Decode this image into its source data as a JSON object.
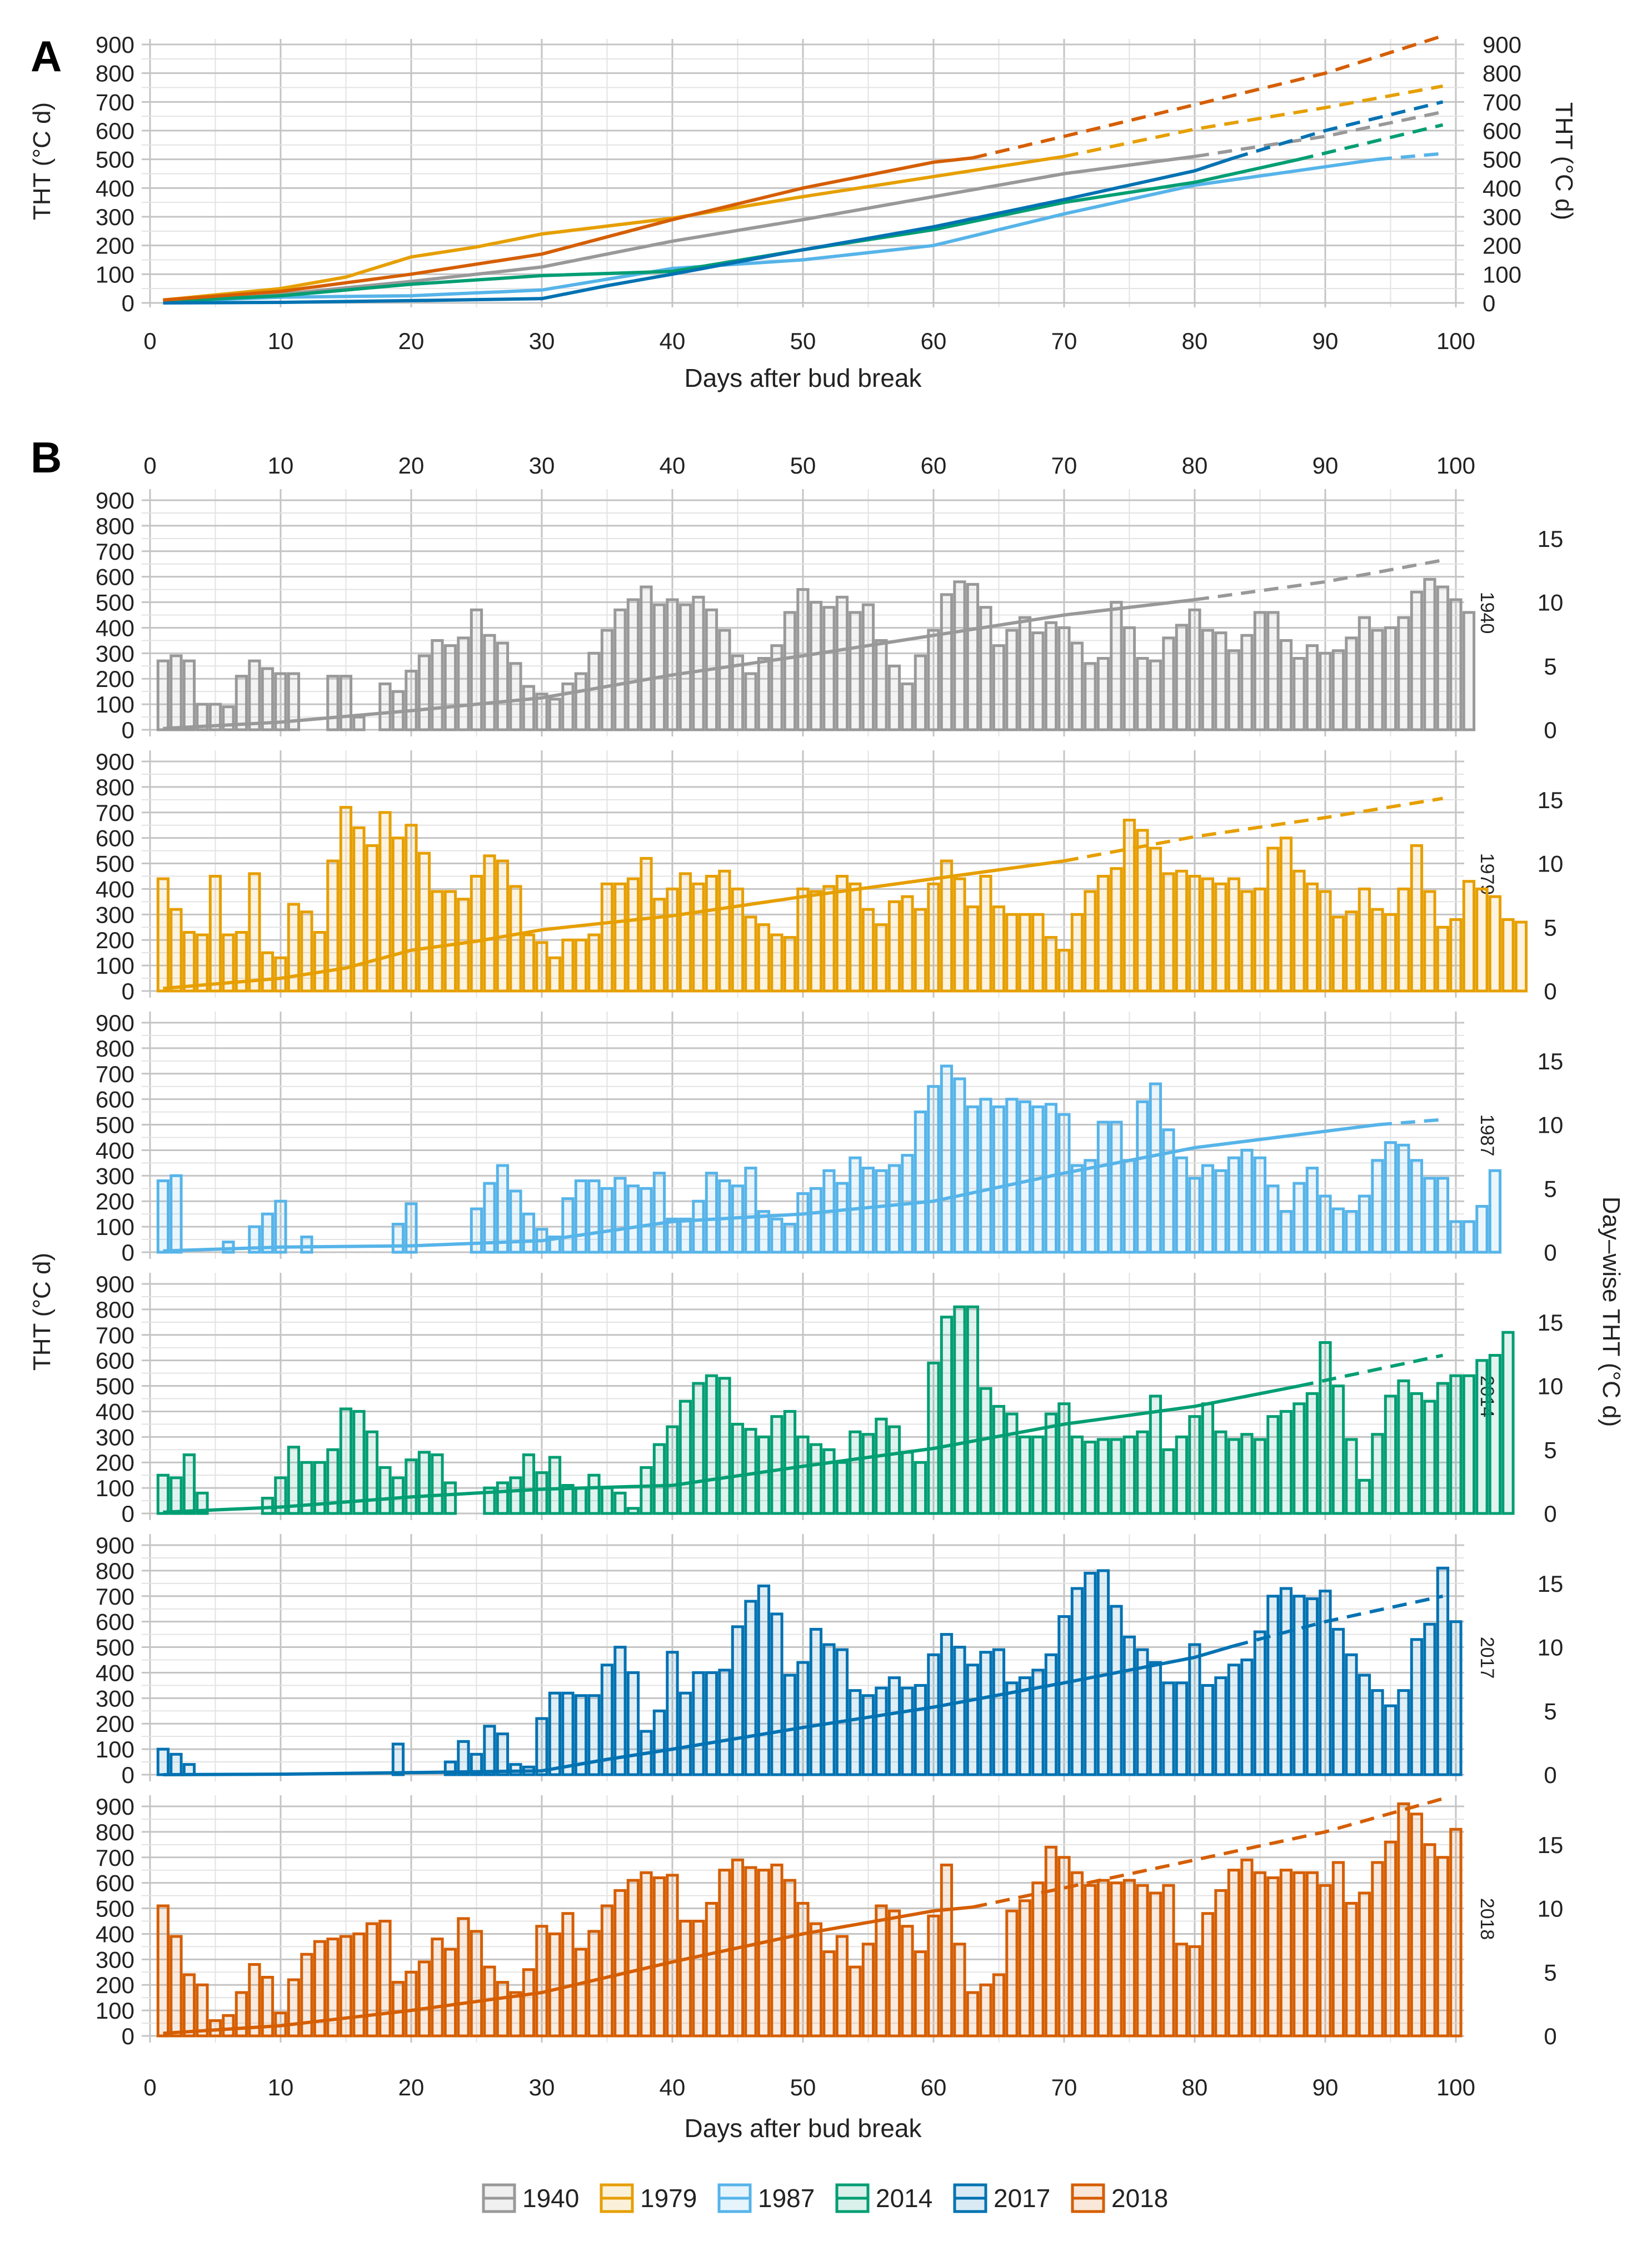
{
  "figure": {
    "panel_a_label": "A",
    "panel_b_label": "B",
    "x_label": "Days after bud break",
    "y_label": "THT (°C d)",
    "y_label_right_a": "THT (°C d)",
    "y_label_right_b": "Day–wise THT (°C d)"
  },
  "legend": [
    {
      "name": "1940",
      "color": "#999999"
    },
    {
      "name": "1979",
      "color": "#E69F00"
    },
    {
      "name": "1987",
      "color": "#56B4E9"
    },
    {
      "name": "2014",
      "color": "#009E73"
    },
    {
      "name": "2017",
      "color": "#0072B2"
    },
    {
      "name": "2018",
      "color": "#D55E00"
    }
  ],
  "chart_data": [
    {
      "type": "line",
      "panel": "A",
      "title": "",
      "xlabel": "Days after bud break",
      "ylabel": "THT (°C d)",
      "ylabel_right": "THT (°C d)",
      "xlim": [
        0,
        100
      ],
      "ylim": [
        0,
        900
      ],
      "x_ticks": [
        0,
        10,
        20,
        30,
        40,
        50,
        60,
        70,
        80,
        90,
        100
      ],
      "y_ticks": [
        0,
        100,
        200,
        300,
        400,
        500,
        600,
        700,
        800,
        900
      ],
      "grid": true,
      "note": "solid = observed cumulative THT; dashed = projected",
      "series": [
        {
          "name": "1940",
          "color": "#999999",
          "observed_end": 80,
          "x": [
            1,
            10,
            20,
            30,
            40,
            50,
            60,
            70,
            80,
            90,
            99
          ],
          "values": [
            5,
            30,
            75,
            125,
            215,
            290,
            370,
            450,
            510,
            580,
            665
          ]
        },
        {
          "name": "1979",
          "color": "#E69F00",
          "observed_end": 70,
          "x": [
            1,
            10,
            15,
            20,
            25,
            30,
            40,
            50,
            60,
            70,
            80,
            90,
            99
          ],
          "values": [
            10,
            50,
            90,
            160,
            195,
            240,
            295,
            370,
            440,
            510,
            605,
            680,
            755
          ]
        },
        {
          "name": "1987",
          "color": "#56B4E9",
          "observed_end": 94,
          "x": [
            1,
            10,
            20,
            30,
            40,
            50,
            60,
            70,
            80,
            94,
            99
          ],
          "values": [
            5,
            20,
            25,
            45,
            120,
            150,
            200,
            310,
            410,
            500,
            520
          ]
        },
        {
          "name": "2014",
          "color": "#009E73",
          "observed_end": 88,
          "x": [
            1,
            10,
            20,
            30,
            40,
            50,
            60,
            70,
            80,
            88,
            99
          ],
          "values": [
            5,
            25,
            65,
            95,
            110,
            185,
            255,
            350,
            420,
            500,
            620
          ]
        },
        {
          "name": "2017",
          "color": "#0072B2",
          "observed_end": 83,
          "x": [
            1,
            10,
            20,
            30,
            35,
            40,
            50,
            60,
            70,
            80,
            83,
            90,
            99
          ],
          "values": [
            0,
            2,
            8,
            15,
            60,
            100,
            185,
            265,
            360,
            460,
            505,
            600,
            700
          ]
        },
        {
          "name": "2018",
          "color": "#D55E00",
          "observed_end": 63,
          "x": [
            1,
            10,
            20,
            30,
            40,
            50,
            60,
            63,
            70,
            80,
            90,
            99
          ],
          "values": [
            10,
            40,
            100,
            170,
            290,
            400,
            490,
            505,
            580,
            690,
            800,
            930
          ]
        }
      ]
    },
    {
      "type": "bar",
      "panel": "B",
      "layout": "six stacked facets, one per year",
      "xlabel": "Days after bud break",
      "ylabel": "THT (°C d)",
      "ylabel_right": "Day–wise THT (°C d)",
      "xlim": [
        0,
        100
      ],
      "ylim_left": [
        0,
        900
      ],
      "ylim_right": [
        0,
        18
      ],
      "x_ticks": [
        0,
        10,
        20,
        30,
        40,
        50,
        60,
        70,
        80,
        90,
        100
      ],
      "y_ticks": [
        0,
        100,
        200,
        300,
        400,
        500,
        600,
        700,
        800,
        900
      ],
      "y_ticks_right": [
        0,
        5,
        10,
        15
      ],
      "note": "bars = day-wise THT on left-axis scale (= right value × 50); line = cumulative THT, dashed beyond observed_end",
      "facets": [
        {
          "year": "1940",
          "color": "#999999",
          "observed_end": 80,
          "bars": [
            270,
            290,
            270,
            100,
            100,
            90,
            210,
            270,
            240,
            220,
            220,
            0,
            0,
            210,
            210,
            50,
            0,
            180,
            150,
            230,
            290,
            350,
            330,
            360,
            470,
            370,
            340,
            260,
            170,
            140,
            120,
            180,
            220,
            300,
            390,
            470,
            510,
            560,
            490,
            510,
            490,
            520,
            470,
            390,
            290,
            220,
            280,
            330,
            460,
            550,
            500,
            480,
            520,
            460,
            490,
            350,
            250,
            180,
            290,
            390,
            530,
            580,
            570,
            480,
            330,
            390,
            440,
            380,
            420,
            400,
            340,
            260,
            280,
            500,
            400,
            280,
            270,
            360,
            410,
            470,
            390,
            380,
            310,
            370,
            460,
            460,
            350,
            280,
            330,
            300,
            310,
            360,
            440,
            390,
            400,
            440,
            540,
            590,
            560,
            510,
            460
          ],
          "line_x": [
            1,
            10,
            20,
            30,
            40,
            50,
            60,
            70,
            80,
            90,
            99
          ],
          "line_values": [
            5,
            30,
            75,
            125,
            215,
            290,
            370,
            450,
            510,
            580,
            665
          ]
        },
        {
          "year": "1979",
          "color": "#E69F00",
          "observed_end": 70,
          "bars": [
            440,
            320,
            230,
            220,
            450,
            220,
            230,
            460,
            150,
            130,
            340,
            310,
            230,
            510,
            720,
            640,
            570,
            700,
            600,
            650,
            540,
            390,
            390,
            360,
            450,
            530,
            510,
            410,
            220,
            190,
            130,
            200,
            200,
            220,
            420,
            420,
            440,
            520,
            360,
            400,
            460,
            420,
            450,
            470,
            400,
            290,
            260,
            220,
            210,
            400,
            390,
            410,
            450,
            420,
            320,
            260,
            350,
            370,
            320,
            420,
            510,
            440,
            330,
            450,
            330,
            300,
            300,
            300,
            210,
            160,
            300,
            390,
            450,
            480,
            670,
            630,
            560,
            460,
            470,
            450,
            440,
            420,
            440,
            390,
            400,
            560,
            600,
            470,
            420,
            390,
            290,
            310,
            400,
            320,
            300,
            400,
            570,
            390,
            250,
            280,
            430,
            400,
            370,
            280,
            270
          ],
          "line_x": [
            1,
            10,
            15,
            20,
            25,
            30,
            40,
            50,
            60,
            70,
            80,
            90,
            99
          ],
          "line_values": [
            10,
            50,
            90,
            160,
            195,
            240,
            295,
            370,
            440,
            510,
            605,
            680,
            755
          ]
        },
        {
          "year": "1987",
          "color": "#56B4E9",
          "observed_end": 94,
          "bars": [
            280,
            300,
            0,
            0,
            0,
            40,
            0,
            100,
            150,
            200,
            0,
            60,
            0,
            0,
            0,
            0,
            0,
            0,
            110,
            190,
            0,
            0,
            0,
            0,
            170,
            270,
            340,
            240,
            150,
            90,
            60,
            210,
            280,
            280,
            250,
            290,
            260,
            250,
            310,
            130,
            130,
            200,
            310,
            280,
            260,
            330,
            160,
            130,
            110,
            230,
            250,
            320,
            270,
            370,
            330,
            320,
            340,
            380,
            550,
            650,
            730,
            680,
            570,
            600,
            570,
            600,
            590,
            570,
            580,
            540,
            340,
            360,
            510,
            510,
            360,
            590,
            660,
            480,
            370,
            290,
            340,
            320,
            370,
            400,
            370,
            260,
            160,
            270,
            330,
            220,
            170,
            160,
            220,
            360,
            430,
            420,
            360,
            290,
            290,
            120,
            120,
            180,
            320
          ],
          "line_x": [
            1,
            10,
            20,
            30,
            40,
            50,
            60,
            70,
            80,
            94,
            99
          ],
          "line_values": [
            5,
            20,
            25,
            45,
            120,
            150,
            200,
            310,
            410,
            500,
            520
          ]
        },
        {
          "year": "2014",
          "color": "#009E73",
          "observed_end": 88,
          "bars": [
            150,
            140,
            230,
            80,
            0,
            0,
            0,
            0,
            60,
            140,
            260,
            200,
            200,
            250,
            410,
            400,
            320,
            180,
            140,
            210,
            240,
            230,
            120,
            0,
            0,
            100,
            120,
            140,
            230,
            160,
            220,
            110,
            100,
            150,
            100,
            80,
            20,
            180,
            270,
            340,
            440,
            510,
            540,
            530,
            350,
            330,
            300,
            380,
            400,
            300,
            270,
            250,
            200,
            320,
            310,
            370,
            340,
            240,
            200,
            590,
            770,
            810,
            810,
            490,
            420,
            390,
            300,
            300,
            390,
            430,
            300,
            280,
            290,
            290,
            300,
            320,
            460,
            250,
            300,
            380,
            430,
            320,
            290,
            310,
            290,
            380,
            400,
            430,
            470,
            670,
            500,
            290,
            130,
            310,
            460,
            520,
            470,
            440,
            510,
            540,
            540,
            600,
            620,
            710
          ],
          "line_x": [
            1,
            10,
            20,
            30,
            40,
            50,
            60,
            70,
            80,
            88,
            99
          ],
          "line_values": [
            5,
            25,
            65,
            95,
            110,
            185,
            255,
            350,
            420,
            500,
            620
          ]
        },
        {
          "year": "2017",
          "color": "#0072B2",
          "observed_end": 83,
          "bars": [
            100,
            80,
            40,
            0,
            0,
            0,
            0,
            0,
            0,
            0,
            0,
            0,
            0,
            0,
            0,
            0,
            0,
            0,
            120,
            0,
            0,
            0,
            50,
            130,
            80,
            190,
            160,
            40,
            30,
            220,
            320,
            320,
            310,
            310,
            430,
            500,
            400,
            170,
            250,
            480,
            320,
            400,
            400,
            410,
            580,
            680,
            740,
            630,
            390,
            440,
            570,
            510,
            490,
            330,
            310,
            340,
            380,
            340,
            350,
            470,
            550,
            500,
            430,
            480,
            490,
            360,
            380,
            410,
            470,
            620,
            730,
            790,
            800,
            660,
            540,
            490,
            440,
            360,
            360,
            510,
            350,
            380,
            430,
            450,
            560,
            700,
            730,
            700,
            690,
            720,
            570,
            470,
            390,
            330,
            270,
            330,
            530,
            590,
            810,
            600
          ],
          "line_x": [
            1,
            10,
            20,
            30,
            35,
            40,
            50,
            60,
            70,
            80,
            83,
            90,
            99
          ],
          "line_values": [
            0,
            2,
            8,
            15,
            60,
            100,
            185,
            265,
            360,
            460,
            505,
            600,
            700
          ]
        },
        {
          "year": "2018",
          "color": "#D55E00",
          "observed_end": 63,
          "bars": [
            510,
            390,
            240,
            200,
            60,
            80,
            170,
            280,
            230,
            90,
            220,
            320,
            370,
            380,
            390,
            400,
            440,
            450,
            210,
            250,
            290,
            380,
            340,
            460,
            410,
            270,
            210,
            170,
            260,
            430,
            400,
            480,
            340,
            410,
            510,
            570,
            610,
            640,
            620,
            630,
            450,
            450,
            520,
            650,
            690,
            660,
            650,
            670,
            610,
            520,
            440,
            330,
            390,
            270,
            360,
            510,
            490,
            430,
            330,
            470,
            670,
            360,
            170,
            200,
            240,
            490,
            530,
            600,
            740,
            700,
            640,
            590,
            610,
            600,
            610,
            590,
            560,
            590,
            360,
            350,
            480,
            570,
            650,
            690,
            640,
            620,
            650,
            640,
            640,
            590,
            680,
            520,
            560,
            680,
            760,
            910,
            870,
            750,
            700,
            810
          ],
          "line_x": [
            1,
            10,
            20,
            30,
            40,
            50,
            60,
            63,
            70,
            80,
            90,
            99
          ],
          "line_values": [
            10,
            40,
            100,
            170,
            290,
            400,
            490,
            505,
            580,
            690,
            800,
            930
          ]
        }
      ]
    }
  ]
}
